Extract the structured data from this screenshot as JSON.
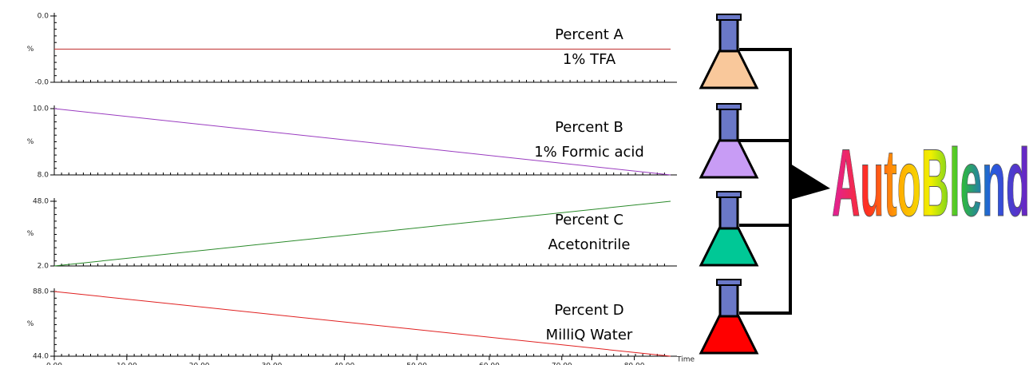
{
  "chart_data": [
    {
      "type": "line",
      "title": "Percent A",
      "subtitle": "1% TFA",
      "ylabel": "%",
      "x": [
        0,
        85
      ],
      "values": [
        0,
        0
      ],
      "color": "#c03030",
      "xlim": [
        0,
        85
      ],
      "ylim": [
        -0.04,
        0.04
      ],
      "yticks": [
        {
          "value": 0.04,
          "label": "0.0"
        },
        {
          "value": -0.04,
          "label": "-0.0"
        }
      ]
    },
    {
      "type": "line",
      "title": "Percent B",
      "subtitle": "1% Formic acid",
      "ylabel": "%",
      "x": [
        0,
        85
      ],
      "values": [
        10,
        8
      ],
      "color": "#9a3cc0",
      "xlim": [
        0,
        85
      ],
      "ylim": [
        8,
        10
      ],
      "yticks": [
        {
          "value": 10,
          "label": "10.0"
        },
        {
          "value": 8,
          "label": "8.0"
        }
      ]
    },
    {
      "type": "line",
      "title": "Percent C",
      "subtitle": "Acetonitrile",
      "ylabel": "%",
      "x": [
        0,
        85
      ],
      "values": [
        2,
        48
      ],
      "color": "#2a8a2a",
      "xlim": [
        0,
        85
      ],
      "ylim": [
        2,
        48
      ],
      "yticks": [
        {
          "value": 48,
          "label": "48.0"
        },
        {
          "value": 2,
          "label": "2.0"
        }
      ]
    },
    {
      "type": "line",
      "title": "Percent D",
      "subtitle": "MilliQ Water",
      "ylabel": "%",
      "x": [
        0,
        85
      ],
      "values": [
        88,
        44
      ],
      "color": "#e02020",
      "xlim": [
        0,
        85
      ],
      "ylim": [
        44,
        88
      ],
      "yticks": [
        {
          "value": 88,
          "label": "88.0"
        },
        {
          "value": 44,
          "label": "44.0"
        }
      ],
      "xlabel": "Time",
      "xticks": [
        {
          "value": 0,
          "label": "0.00"
        },
        {
          "value": 10,
          "label": "10.00"
        },
        {
          "value": 20,
          "label": "20.00"
        },
        {
          "value": 30,
          "label": "30.00"
        },
        {
          "value": 40,
          "label": "40.00"
        },
        {
          "value": 50,
          "label": "50.00"
        },
        {
          "value": 60,
          "label": "60.00"
        },
        {
          "value": 70,
          "label": "70.00"
        },
        {
          "value": 80,
          "label": "80.00"
        }
      ]
    }
  ],
  "logo": "AutoBlend"
}
